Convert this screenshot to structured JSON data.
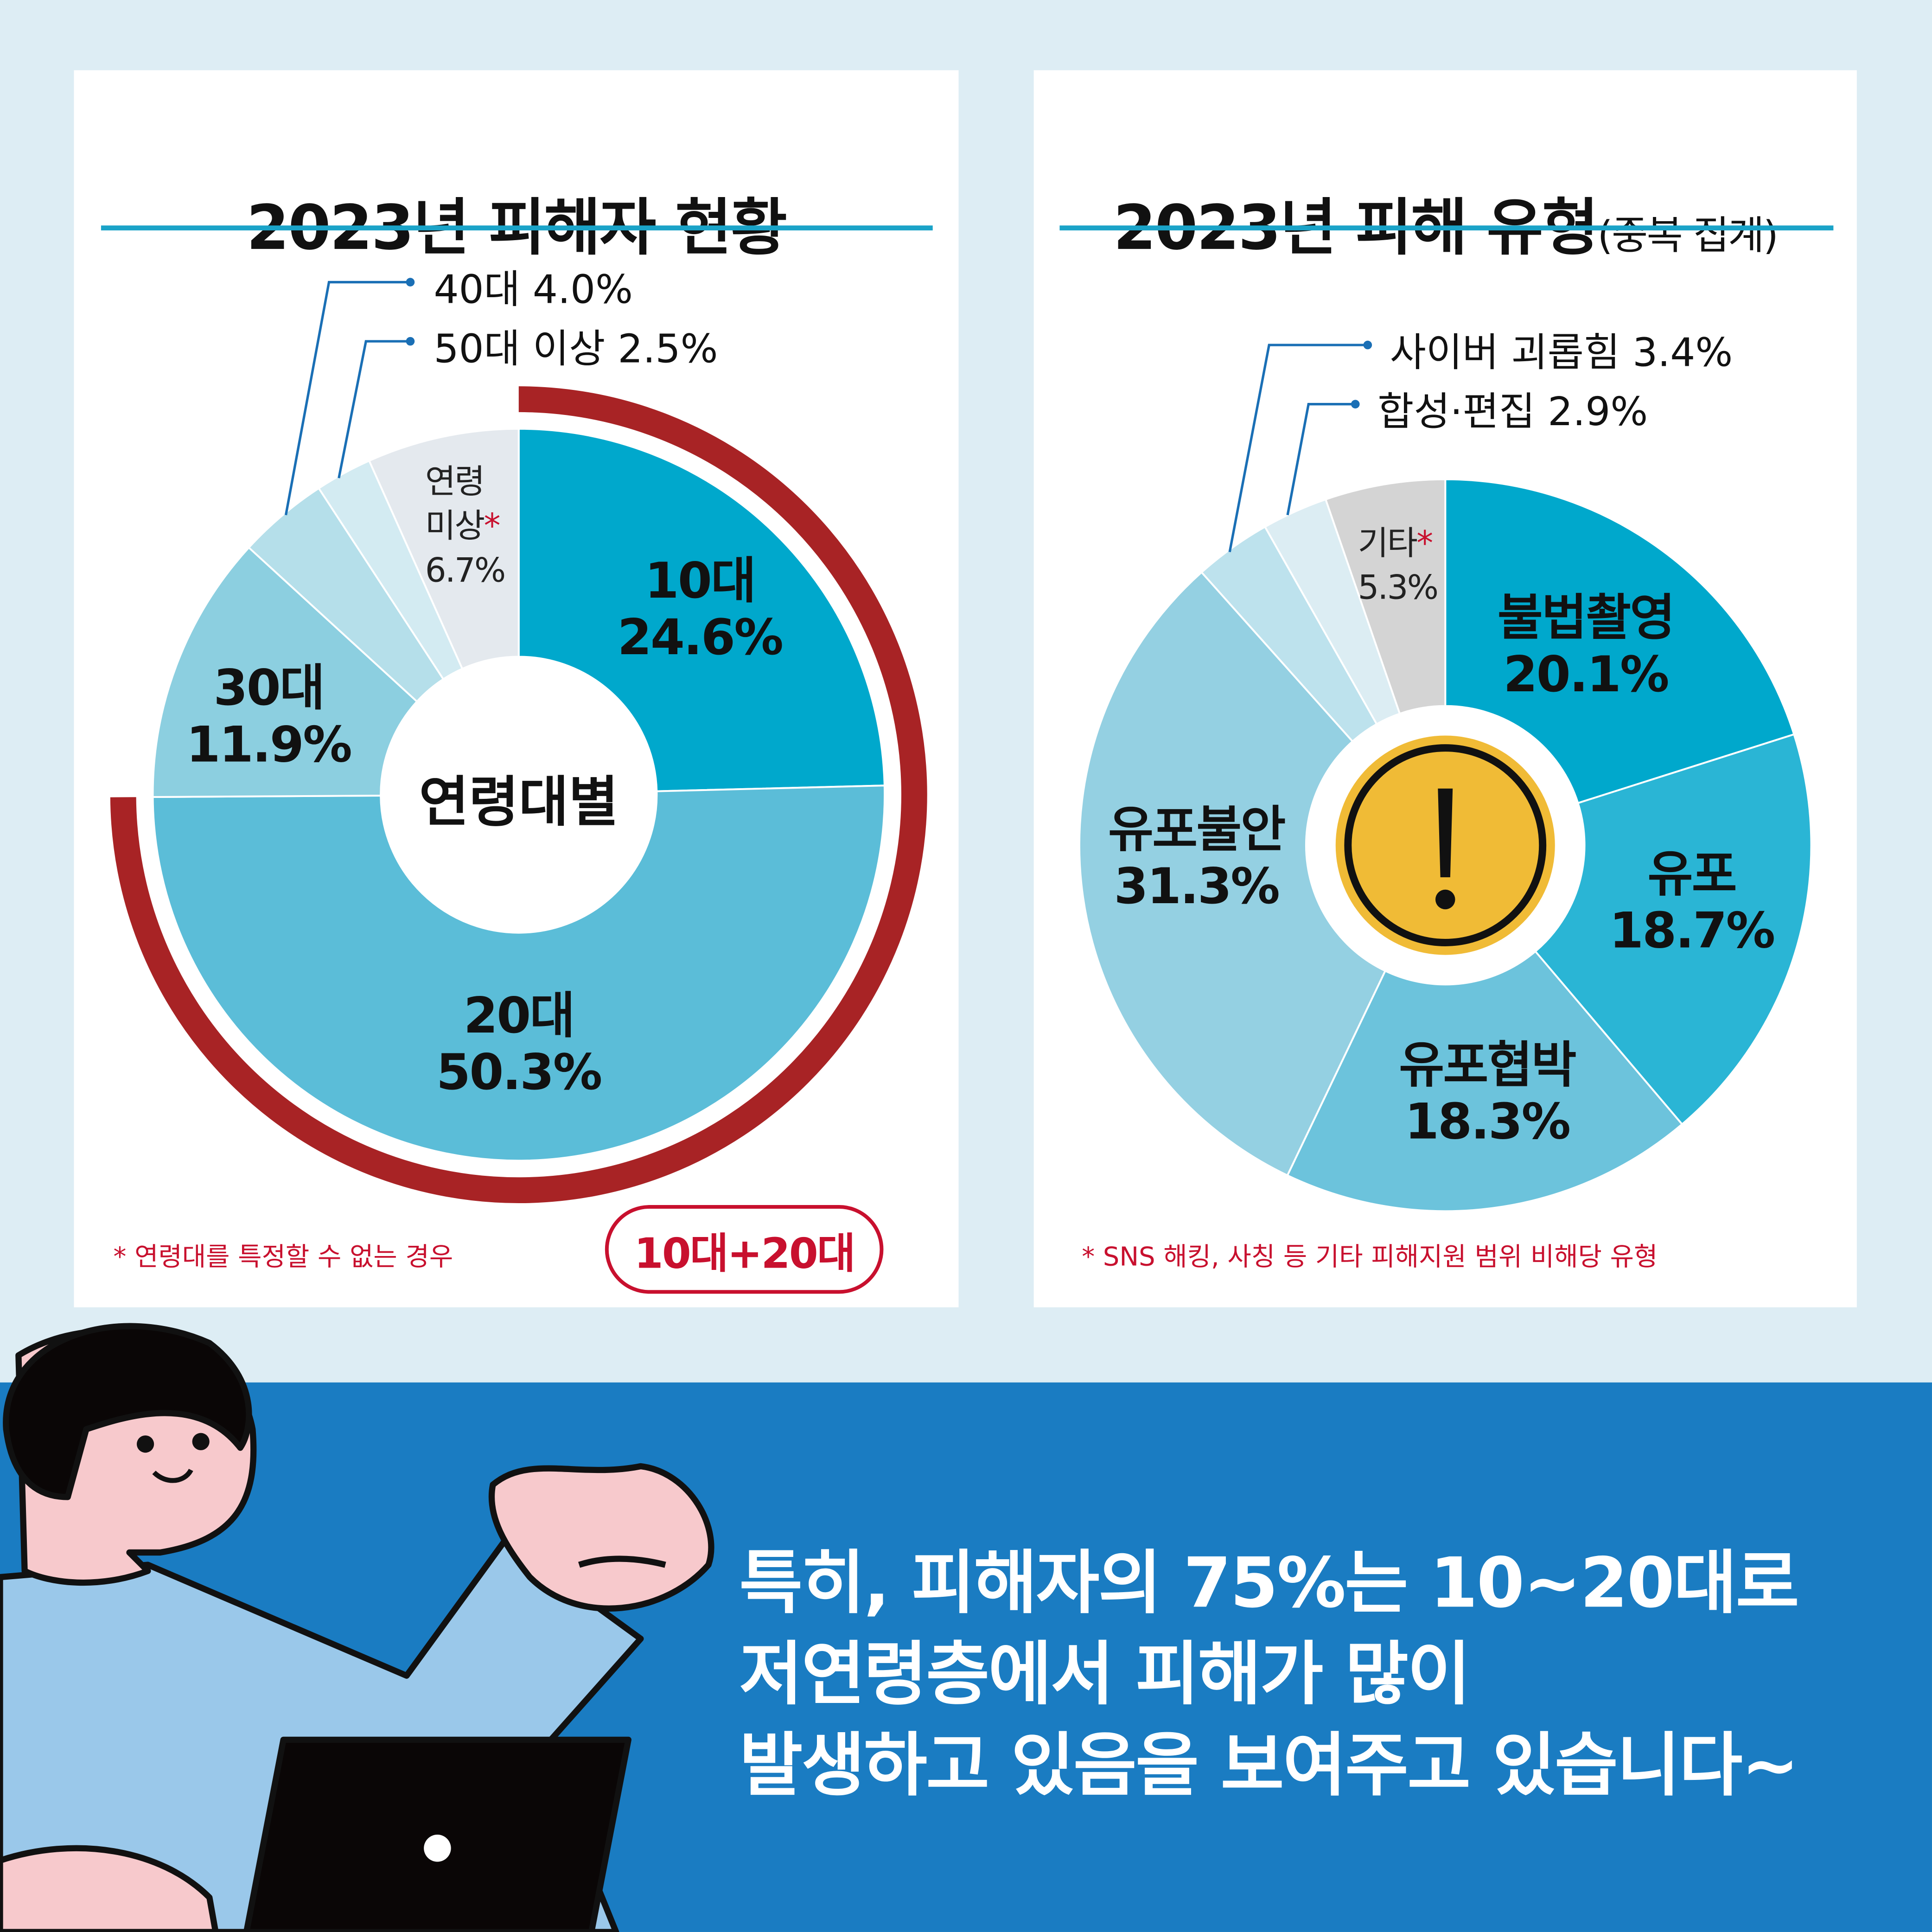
{
  "colors": {
    "background": "#ddedf4",
    "band": "#1a7cc2",
    "accent": "#1aa3c8",
    "red": "#a82325",
    "note_red": "#c8102e",
    "warning_yellow": "#f0bb36"
  },
  "left_panel": {
    "title": "2023년 피해자 현황",
    "center_label": "연령대별",
    "footnote": "* 연령대를 특정할 수 없는 경우",
    "highlight_button": "10대+20대",
    "callouts": [
      "40대 4.0%",
      "50대 이상 2.5%"
    ],
    "labels": {
      "teens": [
        "10대",
        "24.6%"
      ],
      "twenties": [
        "20대",
        "50.3%"
      ],
      "thirties": [
        "30대",
        "11.9%"
      ],
      "unknown": [
        "연령",
        "미상",
        "*",
        "6.7%"
      ]
    }
  },
  "right_panel": {
    "title": "2023년 피해 유형",
    "title_suffix": "(중복 집계)",
    "footnote": "* SNS 해킹, 사칭 등 기타 피해지원 범위 비해당 유형",
    "callouts": [
      "사이버 괴롭힘 3.4%",
      "합성·편집 2.9%"
    ],
    "center_icon": "warning-exclamation-icon",
    "labels": {
      "filming": [
        "불법촬영",
        "20.1%"
      ],
      "distribution": [
        "유포",
        "18.7%"
      ],
      "threat": [
        "유포협박",
        "18.3%"
      ],
      "anxiety": [
        "유포불안",
        "31.3%"
      ],
      "other": [
        "기타",
        "*",
        "5.3%"
      ]
    }
  },
  "message": {
    "lines": [
      "특히, 피해자의 75%는 10~20대로",
      "저연령층에서 피해가 많이",
      "발생하고 있음을 보여주고 있습니다~"
    ]
  },
  "chart_data": [
    {
      "type": "pie",
      "title": "2023년 피해자 현황",
      "subtitle": "연령대별",
      "categories": [
        "10대",
        "20대",
        "30대",
        "40대",
        "50대 이상",
        "연령미상"
      ],
      "values": [
        24.6,
        50.3,
        11.9,
        4.0,
        2.5,
        6.7
      ],
      "colors": [
        "#00a8cc",
        "#5bbdd8",
        "#8ccfe0",
        "#b5dfea",
        "#d3ebf2",
        "#e4e9ee"
      ],
      "highlight": {
        "label": "10대+20대",
        "value": 74.9
      }
    },
    {
      "type": "pie",
      "title": "2023년 피해 유형(중복 집계)",
      "categories": [
        "불법촬영",
        "유포",
        "유포협박",
        "유포불안",
        "사이버 괴롭힘",
        "합성·편집",
        "기타"
      ],
      "values": [
        20.1,
        18.7,
        18.3,
        31.3,
        3.4,
        2.9,
        5.3
      ],
      "colors": [
        "#00a8cc",
        "#2ab5d5",
        "#6cc3dc",
        "#94d0e2",
        "#bde2ed",
        "#dcedf3",
        "#d4d4d4"
      ]
    }
  ]
}
